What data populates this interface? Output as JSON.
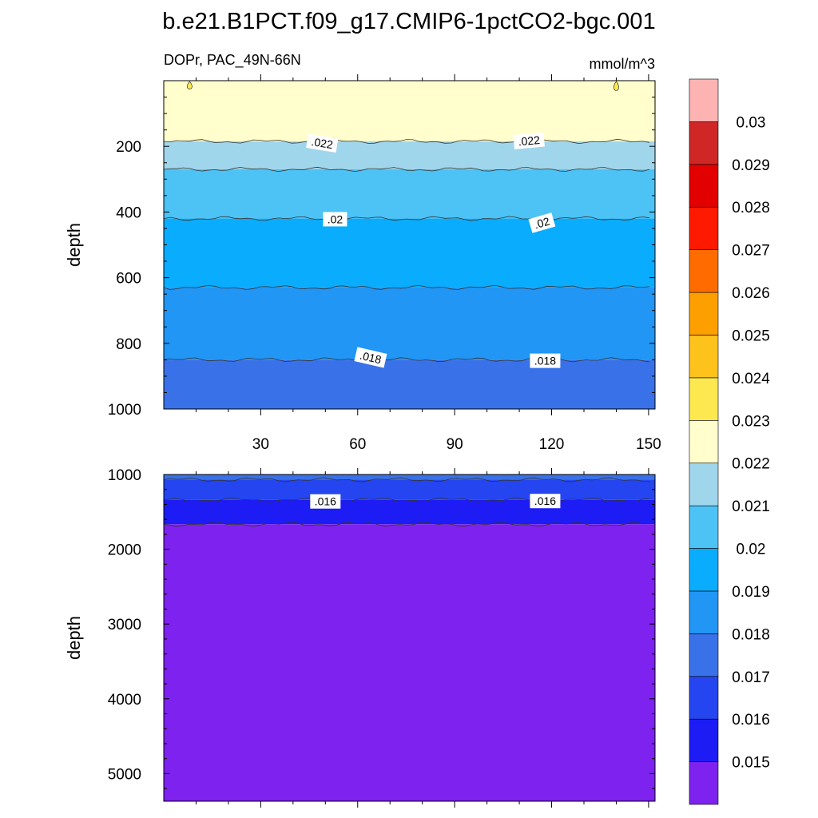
{
  "figure": {
    "title": "b.e21.B1PCT.f09_g17.CMIP6-1pctCO2-bgc.001",
    "left_label": "DOPr, PAC_49N-66N",
    "right_label": "mmol/m^3"
  },
  "chart_data": [
    {
      "type": "heatmap",
      "name": "upper-panel",
      "ylabel": "depth",
      "xlabel": "",
      "xlim": [
        0,
        152
      ],
      "ylim": [
        0,
        1000
      ],
      "y_inverted": true,
      "xticks": [
        30,
        60,
        90,
        120,
        150
      ],
      "yticks": [
        200,
        400,
        600,
        800,
        1000
      ],
      "y_minor_step": 50,
      "x_minor_step": 10,
      "bands": [
        {
          "from": 0,
          "to": 185,
          "color": "#fffecc"
        },
        {
          "from": 185,
          "to": 270,
          "color": "#a0d6ec"
        },
        {
          "from": 270,
          "to": 420,
          "color": "#4cc2f5"
        },
        {
          "from": 420,
          "to": 630,
          "color": "#0aacfd"
        },
        {
          "from": 630,
          "to": 850,
          "color": "#2196f5"
        },
        {
          "from": 850,
          "to": 1000,
          "color": "#3971e8"
        }
      ],
      "contour_labels": [
        {
          "text": ".022",
          "x": 49,
          "y": 190,
          "angle": 9
        },
        {
          "text": ".022",
          "x": 113,
          "y": 183,
          "angle": -5
        },
        {
          "text": ".02",
          "x": 53,
          "y": 422,
          "angle": 0
        },
        {
          "text": ".02",
          "x": 117,
          "y": 433,
          "angle": -16
        },
        {
          "text": ".018",
          "x": 64,
          "y": 843,
          "angle": 13
        },
        {
          "text": ".018",
          "x": 118,
          "y": 853,
          "angle": 0
        }
      ],
      "small_features": [
        {
          "x": 8,
          "depth": 25,
          "color": "#fde94f"
        },
        {
          "x": 140,
          "depth": 30,
          "color": "#fde94f"
        }
      ]
    },
    {
      "type": "heatmap",
      "name": "lower-panel",
      "ylabel": "depth",
      "xlabel": "",
      "xlim": [
        0,
        152
      ],
      "ylim": [
        1000,
        5370
      ],
      "y_inverted": true,
      "xticks": [
        30,
        60,
        90,
        120,
        150
      ],
      "yticks": [
        1000,
        2000,
        3000,
        4000,
        5000
      ],
      "y_minor_step": 200,
      "x_minor_step": 10,
      "bands": [
        {
          "from": 1000,
          "to": 1070,
          "color": "#3971e8"
        },
        {
          "from": 1070,
          "to": 1340,
          "color": "#2445f0"
        },
        {
          "from": 1340,
          "to": 1665,
          "color": "#1e1cf5"
        },
        {
          "from": 1665,
          "to": 5370,
          "color": "#7d22ef"
        }
      ],
      "contour_labels": [
        {
          "text": ".016",
          "x": 50,
          "y": 1360,
          "angle": 0
        },
        {
          "text": ".016",
          "x": 118,
          "y": 1355,
          "angle": 0
        }
      ]
    }
  ],
  "colorbar": {
    "labels": [
      "0.015",
      "0.016",
      "0.017",
      "0.018",
      "0.019",
      "0.02",
      "0.021",
      "0.022",
      "0.023",
      "0.024",
      "0.025",
      "0.026",
      "0.027",
      "0.028",
      "0.029",
      "0.03"
    ],
    "colors_bottom_to_top": [
      "#7d22ef",
      "#1e1cf5",
      "#2445f0",
      "#3971e8",
      "#2196f5",
      "#0aacfd",
      "#4cc2f5",
      "#a0d6ec",
      "#fffecc",
      "#fde94f",
      "#fec21d",
      "#fe9f00",
      "#fe6c00",
      "#fe1a00",
      "#e20000",
      "#d12626",
      "#feb3b3"
    ]
  }
}
